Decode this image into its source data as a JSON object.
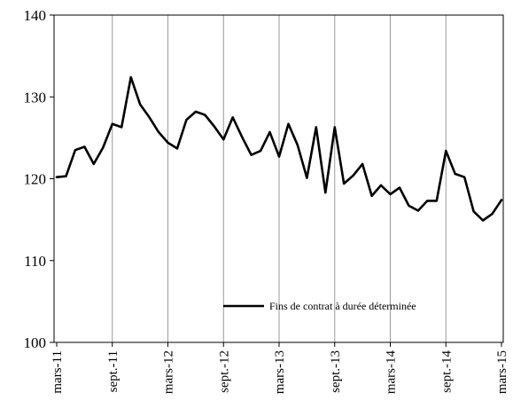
{
  "chart_data": {
    "type": "line",
    "title": "",
    "xlabel": "",
    "ylabel": "",
    "ylim": [
      100,
      140
    ],
    "yticks": [
      100,
      110,
      120,
      130,
      140
    ],
    "grid": "vertical",
    "legend_position": "bottom-right",
    "x": [
      "mars-11",
      "avr.-11",
      "mai-11",
      "juin-11",
      "juil.-11",
      "août-11",
      "sept.-11",
      "oct.-11",
      "nov.-11",
      "déc.-11",
      "janv.-12",
      "févr.-12",
      "mars-12",
      "avr.-12",
      "mai-12",
      "juin-12",
      "juil.-12",
      "août-12",
      "sept.-12",
      "oct.-12",
      "nov.-12",
      "déc.-12",
      "janv.-13",
      "févr.-13",
      "mars-13",
      "avr.-13",
      "mai-13",
      "juin-13",
      "juil.-13",
      "août-13",
      "sept.-13",
      "oct.-13",
      "nov.-13",
      "déc.-13",
      "janv.-14",
      "févr.-14",
      "mars-14",
      "avr.-14",
      "mai-14",
      "juin-14",
      "juil.-14",
      "août-14",
      "sept.-14",
      "oct.-14",
      "nov.-14",
      "déc.-14",
      "janv.-15",
      "févr.-15",
      "mars-15"
    ],
    "xtick_labels": [
      "mars-11",
      "sept.-11",
      "mars-12",
      "sept.-12",
      "mars-13",
      "sept.-13",
      "mars-14",
      "sept.-14",
      "mars-15"
    ],
    "series": [
      {
        "name": "Fins de contrat à durée déterminée",
        "color": "#000000",
        "values": [
          120.2,
          120.3,
          123.5,
          123.9,
          121.8,
          123.8,
          126.7,
          126.3,
          132.4,
          129.1,
          127.5,
          125.7,
          124.4,
          123.7,
          127.2,
          128.2,
          127.8,
          126.4,
          124.8,
          127.5,
          125.1,
          122.9,
          123.4,
          125.7,
          122.7,
          126.7,
          124.1,
          120.1,
          126.3,
          118.3,
          126.3,
          119.4,
          120.4,
          121.8,
          117.9,
          119.2,
          118.1,
          118.9,
          116.7,
          116.1,
          117.3,
          117.3,
          123.4,
          120.6,
          120.2,
          116.0,
          114.9,
          115.7,
          117.4
        ]
      }
    ]
  }
}
